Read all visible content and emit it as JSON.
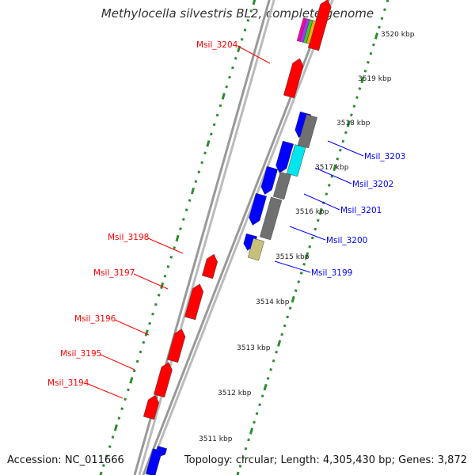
{
  "title": "Methylocella silvestris BL2, complete genome",
  "footer": {
    "accession": "Accession: NC_011666",
    "summary": "Topology: circular; Length: 4,305,430 bp; Genes: 3,872"
  },
  "colors": {
    "forward_gene": "#ff0000",
    "reverse_gene": "#0000ff",
    "backbone": "#999999",
    "ticks": "#2e8b2e",
    "grey_feature": "#707070",
    "cyan_feature": "#00e5ee",
    "khaki_feature": "#c8c078"
  },
  "kbp_ticks": [
    "3511 kbp",
    "3512 kbp",
    "3513 kbp",
    "3514 kbp",
    "3515 kbp",
    "3516 kbp",
    "3517 kbp",
    "3518 kbp",
    "3519 kbp",
    "3520 kbp"
  ],
  "forward_labels": [
    "Msil_3194",
    "Msil_3195",
    "Msil_3196",
    "Msil_3197",
    "Msil_3198",
    "Msil_3204"
  ],
  "reverse_labels": [
    "Msil_3199",
    "Msil_3200",
    "Msil_3201",
    "Msil_3202",
    "Msil_3203"
  ]
}
